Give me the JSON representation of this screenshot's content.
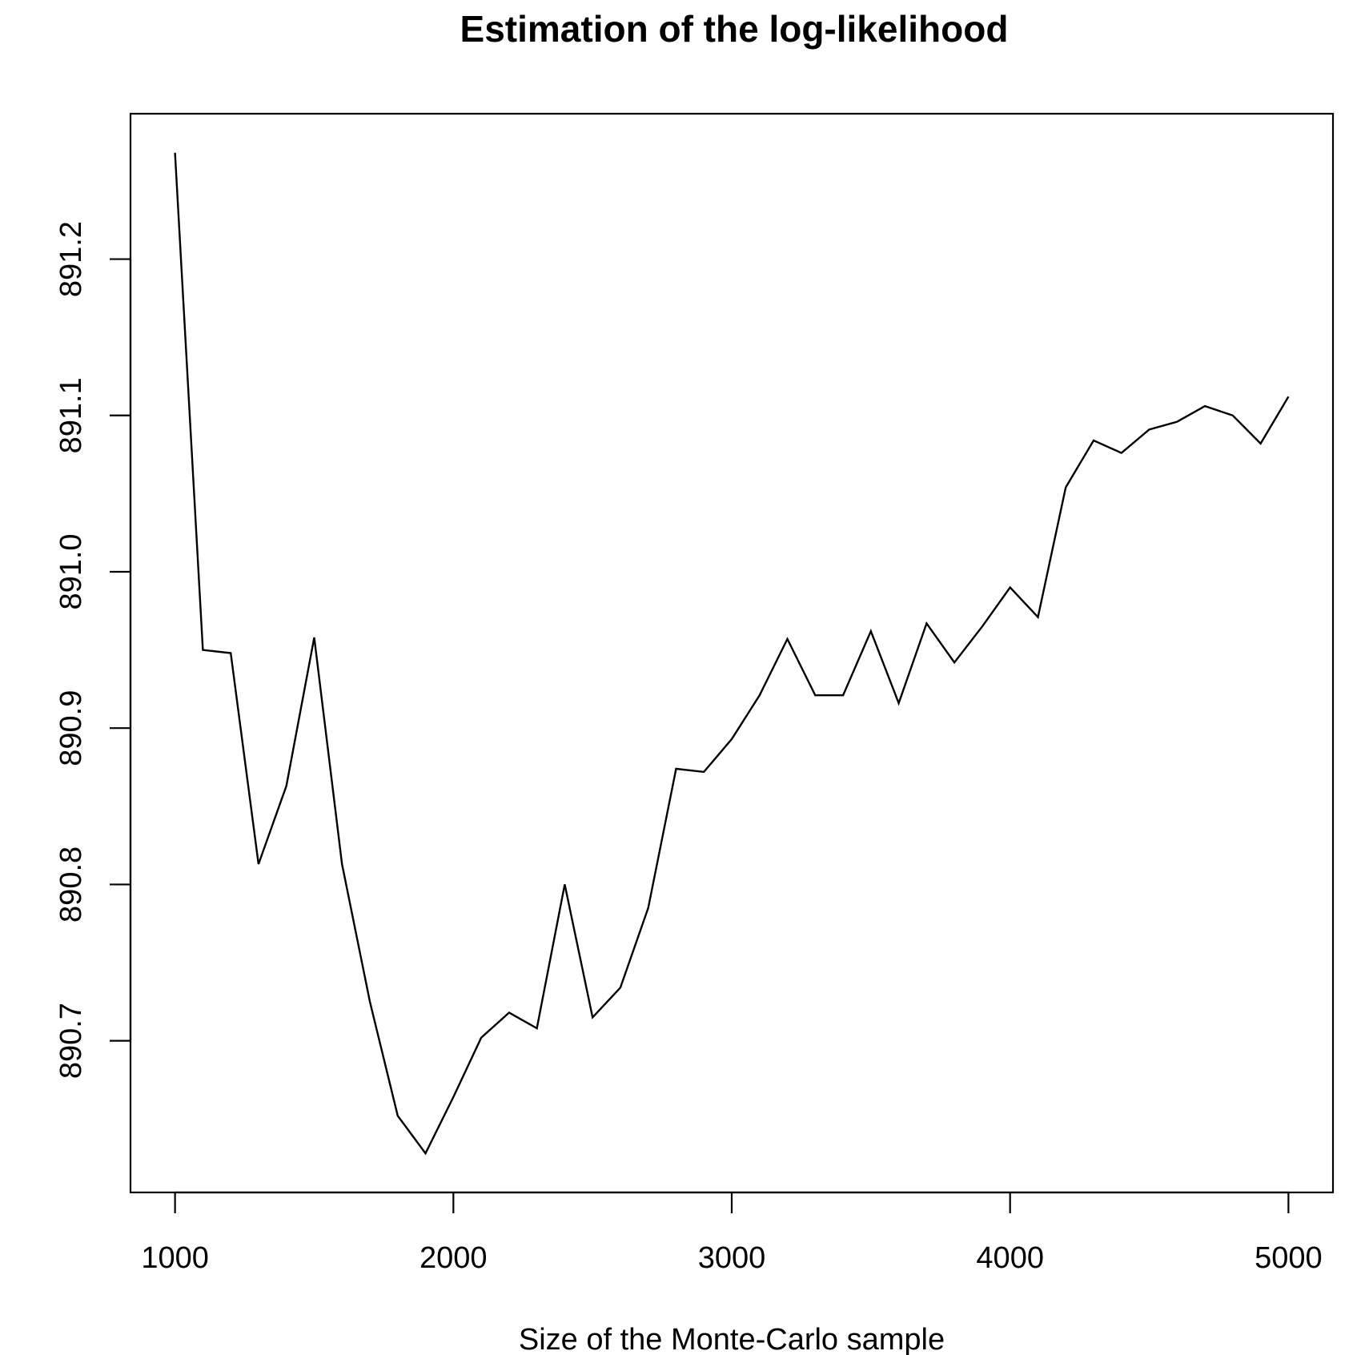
{
  "chart_data": {
    "type": "line",
    "title": "Estimation of the log-likelihood",
    "xlabel": "Size of the Monte-Carlo sample",
    "ylabel": "",
    "xlim": [
      840,
      5160
    ],
    "ylim": [
      890.603,
      891.293
    ],
    "x_ticks": [
      1000,
      2000,
      3000,
      4000,
      5000
    ],
    "x_tick_labels": [
      "1000",
      "2000",
      "3000",
      "4000",
      "5000"
    ],
    "y_ticks": [
      890.7,
      890.8,
      890.9,
      891.0,
      891.1,
      891.2
    ],
    "y_tick_labels": [
      "890.7",
      "890.8",
      "890.9",
      "891.0",
      "891.1",
      "891.2"
    ],
    "grid": false,
    "legend": "none",
    "line_color": "#000000",
    "series": [
      {
        "x": [
          1000,
          1100,
          1200,
          1300,
          1400,
          1500,
          1600,
          1700,
          1800,
          1900,
          2000,
          2100,
          2200,
          2300,
          2400,
          2500,
          2600,
          2700,
          2800,
          2900,
          3000,
          3100,
          3200,
          3300,
          3400,
          3500,
          3600,
          3700,
          3800,
          3900,
          4000,
          4100,
          4200,
          4300,
          4400,
          4500,
          4600,
          4700,
          4800,
          4900,
          5000
        ],
        "values": [
          891.268,
          890.95,
          890.948,
          890.813,
          890.863,
          890.958,
          890.813,
          890.725,
          890.652,
          890.628,
          890.664,
          890.702,
          890.718,
          890.708,
          890.8,
          890.715,
          890.734,
          890.785,
          890.874,
          890.872,
          890.893,
          890.921,
          890.957,
          890.921,
          890.921,
          890.962,
          890.916,
          890.967,
          890.942,
          890.965,
          890.99,
          890.971,
          891.054,
          891.084,
          891.076,
          891.091,
          891.096,
          891.106,
          891.1,
          891.082,
          891.112
        ]
      }
    ]
  }
}
